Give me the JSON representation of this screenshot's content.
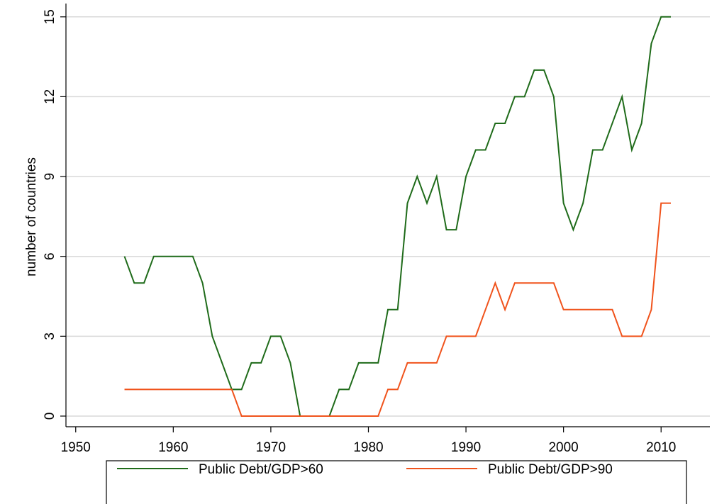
{
  "chart_data": {
    "type": "line",
    "y_label": "number of countries",
    "x": [
      1955,
      1956,
      1957,
      1958,
      1959,
      1960,
      1961,
      1962,
      1963,
      1964,
      1965,
      1966,
      1967,
      1968,
      1969,
      1970,
      1971,
      1972,
      1973,
      1974,
      1975,
      1976,
      1977,
      1978,
      1979,
      1980,
      1981,
      1982,
      1983,
      1984,
      1985,
      1986,
      1987,
      1988,
      1989,
      1990,
      1991,
      1992,
      1993,
      1994,
      1995,
      1996,
      1997,
      1998,
      1999,
      2000,
      2001,
      2002,
      2003,
      2004,
      2005,
      2006,
      2007,
      2008,
      2009,
      2010,
      2011
    ],
    "series": [
      {
        "name": "Public Debt/GDP>60",
        "color": "#1f6b1a",
        "values": [
          6,
          5,
          5,
          6,
          6,
          6,
          6,
          6,
          5,
          3,
          2,
          1,
          1,
          2,
          2,
          3,
          3,
          2,
          0,
          0,
          0,
          0,
          1,
          1,
          2,
          2,
          2,
          4,
          4,
          8,
          9,
          8,
          9,
          7,
          7,
          9,
          10,
          10,
          11,
          11,
          12,
          12,
          13,
          13,
          12,
          8,
          7,
          8,
          10,
          10,
          11,
          12,
          10,
          11,
          14,
          15,
          15
        ]
      },
      {
        "name": "Public Debt/GDP>90",
        "color": "#f0531c",
        "values": [
          1,
          1,
          1,
          1,
          1,
          1,
          1,
          1,
          1,
          1,
          1,
          1,
          0,
          0,
          0,
          0,
          0,
          0,
          0,
          0,
          0,
          0,
          0,
          0,
          0,
          0,
          0,
          1,
          1,
          2,
          2,
          2,
          2,
          3,
          3,
          3,
          3,
          4,
          5,
          4,
          5,
          5,
          5,
          5,
          5,
          4,
          4,
          4,
          4,
          4,
          4,
          3,
          3,
          3,
          4,
          8,
          8
        ]
      }
    ],
    "xlim": [
      1949,
      2015
    ],
    "xticks": [
      1950,
      1960,
      1970,
      1980,
      1990,
      2000,
      2010
    ],
    "ylim": [
      -0.4,
      15.5
    ],
    "yticks": [
      0,
      3,
      6,
      9,
      12,
      15
    ],
    "grid": true
  }
}
